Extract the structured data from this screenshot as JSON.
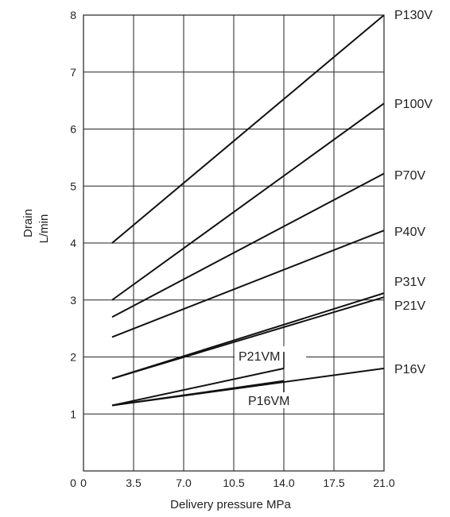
{
  "chart_data": {
    "type": "line",
    "title": "",
    "xlabel": "Delivery pressure  MPa",
    "ylabel": [
      "Drain",
      "L/min"
    ],
    "xlim": [
      0,
      21.0
    ],
    "ylim": [
      0,
      8
    ],
    "x_ticks": [
      0,
      3.5,
      7.0,
      10.5,
      14.0,
      17.5,
      21.0
    ],
    "x_tick_labels": [
      "0",
      "3.5",
      "7.0",
      "10.5",
      "14.0",
      "17.5",
      "21.0"
    ],
    "y_ticks": [
      1,
      2,
      3,
      4,
      5,
      6,
      7,
      8
    ],
    "y_tick_labels": [
      "1",
      "2",
      "3",
      "4",
      "5",
      "6",
      "7",
      "8"
    ],
    "grid": true,
    "series": [
      {
        "name": "P130V",
        "x": [
          2.0,
          21.0
        ],
        "y": [
          4.0,
          8.0
        ]
      },
      {
        "name": "P100V",
        "x": [
          2.0,
          21.0
        ],
        "y": [
          3.0,
          6.45
        ]
      },
      {
        "name": "P70V",
        "x": [
          2.0,
          21.0
        ],
        "y": [
          2.7,
          5.22
        ]
      },
      {
        "name": "P40V",
        "x": [
          2.0,
          21.0
        ],
        "y": [
          2.35,
          4.22
        ]
      },
      {
        "name": "P31V",
        "x": [
          2.0,
          21.0
        ],
        "y": [
          1.62,
          3.12
        ]
      },
      {
        "name": "P21V",
        "x": [
          2.0,
          21.0
        ],
        "y": [
          1.62,
          3.05
        ]
      },
      {
        "name": "P21VM",
        "x": [
          2.0,
          14.0
        ],
        "y": [
          1.15,
          1.8
        ]
      },
      {
        "name": "P16V",
        "x": [
          2.0,
          21.0
        ],
        "y": [
          1.15,
          1.8
        ]
      },
      {
        "name": "P16VM",
        "x": [
          2.0,
          14.0
        ],
        "y": [
          1.15,
          1.58
        ]
      }
    ]
  }
}
